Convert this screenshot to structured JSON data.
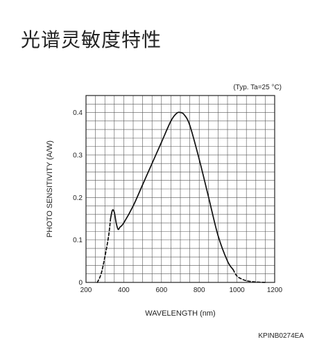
{
  "page": {
    "title": "光谱灵敏度特性"
  },
  "chart_data": {
    "type": "line",
    "title": "",
    "condition": "(Typ. Ta=25 °C)",
    "xlabel": "WAVELENGTH (nm)",
    "ylabel": "PHOTO SENSITIVITY (A/W)",
    "xlim": [
      200,
      1200
    ],
    "ylim": [
      0,
      0.4
    ],
    "y_visible_max": 0.44,
    "xticks": [
      200,
      400,
      600,
      800,
      1000,
      1200
    ],
    "yticks": [
      0,
      0.1,
      0.2,
      0.3,
      0.4
    ],
    "grid": true,
    "series": [
      {
        "style": "dashed",
        "x": [
          260,
          280,
          300,
          320,
          330
        ],
        "y": [
          0.0,
          0.02,
          0.06,
          0.11,
          0.15
        ]
      },
      {
        "style": "solid",
        "x": [
          330,
          340,
          350,
          360,
          370,
          380,
          400,
          450,
          500,
          550,
          600,
          650,
          680,
          700,
          720,
          750,
          800,
          850,
          900,
          950,
          980
        ],
        "y": [
          0.15,
          0.17,
          0.165,
          0.14,
          0.125,
          0.13,
          0.14,
          0.18,
          0.23,
          0.28,
          0.33,
          0.38,
          0.398,
          0.4,
          0.395,
          0.37,
          0.29,
          0.2,
          0.11,
          0.05,
          0.03
        ]
      },
      {
        "style": "dashed",
        "x": [
          980,
          1000,
          1030,
          1060,
          1100,
          1150
        ],
        "y": [
          0.03,
          0.015,
          0.007,
          0.003,
          0.001,
          0.0
        ]
      }
    ]
  },
  "footer": {
    "code": "KPINB0274EA"
  }
}
